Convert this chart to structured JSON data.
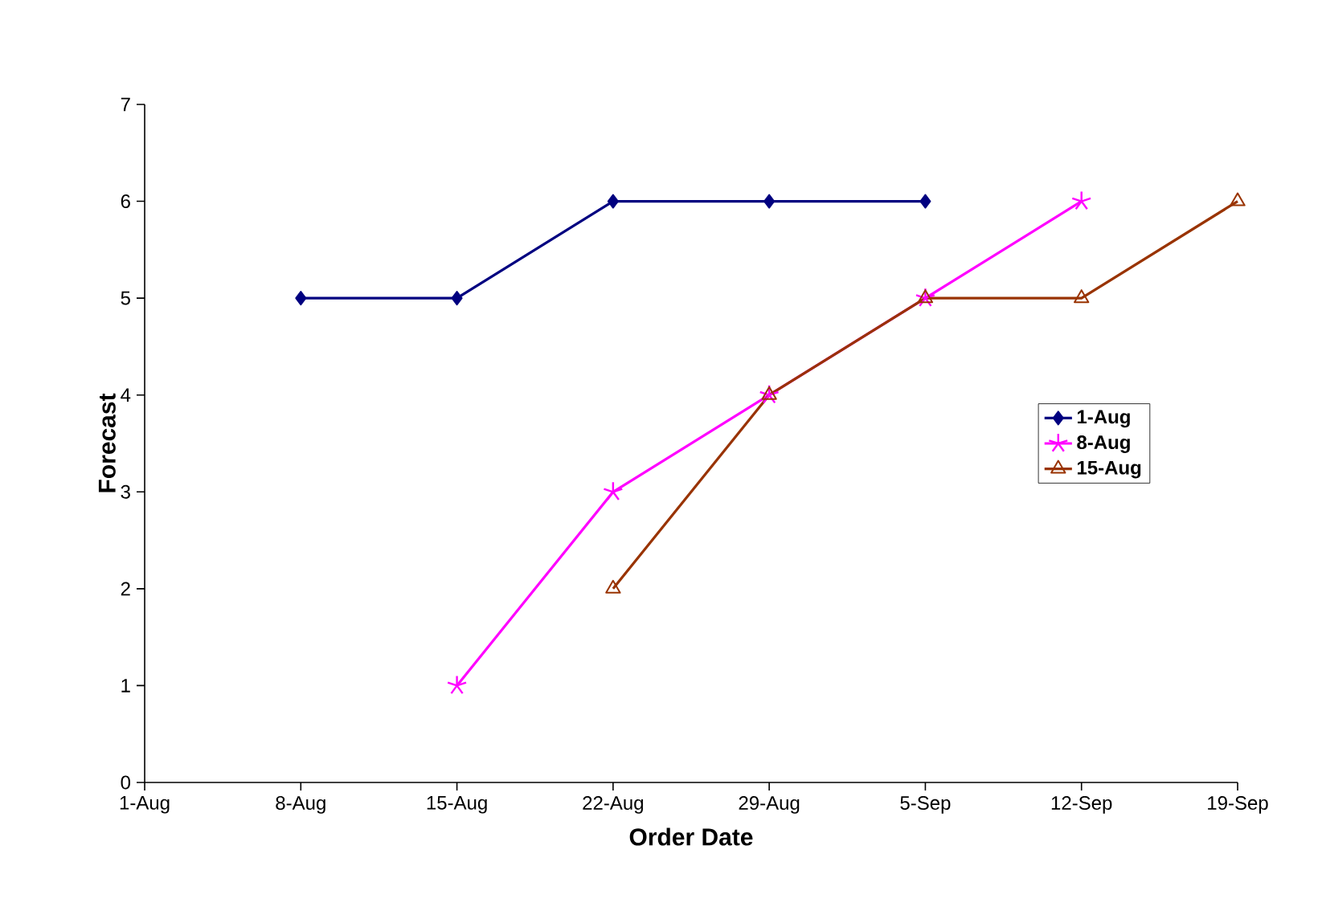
{
  "chart_data": {
    "type": "line",
    "xlabel": "Order Date",
    "ylabel": "Forecast",
    "categories": [
      "1-Aug",
      "8-Aug",
      "15-Aug",
      "22-Aug",
      "29-Aug",
      "5-Sep",
      "12-Sep",
      "19-Sep"
    ],
    "series": [
      {
        "name": "1-Aug",
        "color": "#000080",
        "marker": "diamond",
        "values": [
          null,
          5,
          5,
          6,
          6,
          6,
          null,
          null
        ]
      },
      {
        "name": "8-Aug",
        "color": "#ff00ff",
        "marker": "cross",
        "values": [
          null,
          null,
          1,
          3,
          4,
          5,
          6,
          null
        ]
      },
      {
        "name": "15-Aug",
        "color": "#993300",
        "marker": "triangle",
        "values": [
          null,
          null,
          null,
          2,
          4,
          5,
          5,
          6
        ]
      }
    ],
    "ylim": [
      0,
      7
    ],
    "yticks": [
      0,
      1,
      2,
      3,
      4,
      5,
      6,
      7
    ],
    "grid": false,
    "legend": "right",
    "line_style": "solid"
  }
}
